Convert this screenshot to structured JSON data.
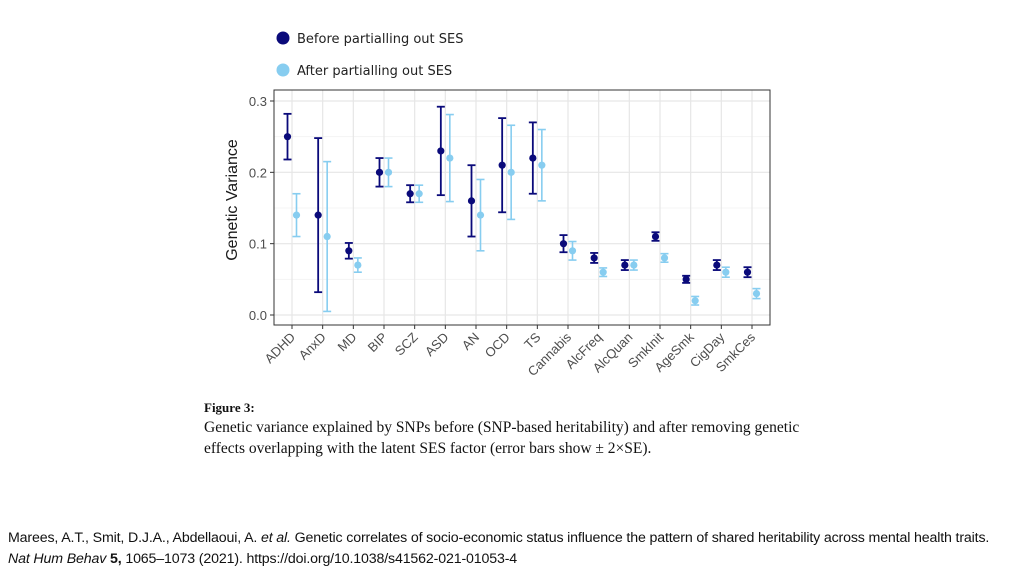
{
  "chart_data": {
    "type": "scatter",
    "subtype": "point-with-error-bars",
    "title": "",
    "xlabel": "",
    "ylabel": "Genetic Variance",
    "ylim": [
      0.0,
      0.3
    ],
    "yticks": [
      0.0,
      0.1,
      0.2,
      0.3
    ],
    "ytick_labels": [
      "0.0",
      "0.1",
      "0.2",
      "0.3"
    ],
    "grid": true,
    "legend_position": "top",
    "categories": [
      "ADHD",
      "AnxD",
      "MD",
      "BIP",
      "SCZ",
      "ASD",
      "AN",
      "OCD",
      "TS",
      "Cannabis",
      "AlcFreq",
      "AlcQuan",
      "SmkInit",
      "AgeSmk",
      "CigDay",
      "SmkCes"
    ],
    "series": [
      {
        "name": "Before partialling out SES",
        "color": "#0a0a7a",
        "values": [
          0.25,
          0.14,
          0.09,
          0.2,
          0.17,
          0.23,
          0.16,
          0.21,
          0.22,
          0.1,
          0.08,
          0.07,
          0.11,
          0.05,
          0.07,
          0.06
        ],
        "lower": [
          0.218,
          0.032,
          0.079,
          0.18,
          0.158,
          0.168,
          0.11,
          0.144,
          0.17,
          0.088,
          0.073,
          0.063,
          0.104,
          0.045,
          0.063,
          0.053
        ],
        "upper": [
          0.282,
          0.248,
          0.101,
          0.22,
          0.182,
          0.292,
          0.21,
          0.276,
          0.27,
          0.112,
          0.087,
          0.077,
          0.116,
          0.055,
          0.077,
          0.067
        ]
      },
      {
        "name": "After partialling out SES",
        "color": "#87cdf0",
        "values": [
          0.14,
          0.11,
          0.07,
          0.2,
          0.17,
          0.22,
          0.14,
          0.2,
          0.21,
          0.09,
          0.06,
          0.07,
          0.08,
          0.02,
          0.06,
          0.03
        ],
        "lower": [
          0.11,
          0.005,
          0.06,
          0.18,
          0.158,
          0.159,
          0.09,
          0.134,
          0.16,
          0.077,
          0.054,
          0.063,
          0.074,
          0.014,
          0.053,
          0.023
        ],
        "upper": [
          0.17,
          0.215,
          0.08,
          0.22,
          0.182,
          0.281,
          0.19,
          0.266,
          0.26,
          0.103,
          0.066,
          0.077,
          0.086,
          0.026,
          0.067,
          0.037
        ]
      }
    ]
  },
  "caption": {
    "label": "Figure 3:",
    "text": "Genetic variance explained by SNPs before (SNP-based heritability) and after removing genetic effects overlapping with the latent SES factor (error bars show ± 2×SE)."
  },
  "citation": {
    "authors": "Marees, A.T., Smit, D.J.A., Abdellaoui, A. ",
    "et_al": "et al.",
    "title": " Genetic correlates of socio-economic status influence the pattern of shared heritability across mental health traits. ",
    "journal": "Nat Hum Behav",
    "volume": " 5,",
    "pages_year_doi": " 1065–1073 (2021). https://doi.org/10.1038/s41562-021-01053-4"
  }
}
